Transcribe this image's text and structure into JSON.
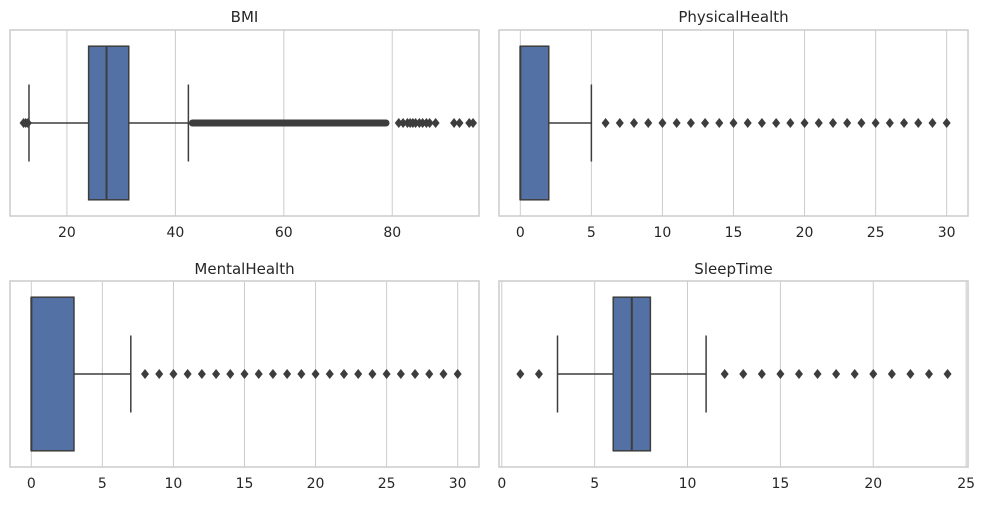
{
  "colors": {
    "box": "#5471a6",
    "line": "#3d3d3d",
    "grid": "#cccccc",
    "frame": "#cccccc",
    "text": "#262626"
  },
  "chart_data": [
    {
      "type": "box",
      "title": "BMI",
      "xlim": [
        9.5,
        96
      ],
      "ticks": [
        20,
        40,
        60,
        80
      ],
      "grid": true,
      "box": {
        "whisker_low": 13,
        "q1": 24,
        "median": 27.3,
        "q3": 31.4,
        "whisker_high": 42.4
      },
      "outliers_low": [
        12.0,
        12.4,
        12.8
      ],
      "outlier_band": [
        42.5,
        79.5
      ],
      "outliers_high": [
        81.2,
        82.0,
        82.8,
        83.3,
        83.8,
        84.3,
        85.0,
        85.6,
        86.3,
        86.9,
        88.0,
        91.4,
        92.4,
        94.2,
        94.9
      ]
    },
    {
      "type": "box",
      "title": "PhysicalHealth",
      "xlim": [
        -1.5,
        31.5
      ],
      "ticks": [
        0,
        5,
        10,
        15,
        20,
        25,
        30
      ],
      "grid": true,
      "box": {
        "whisker_low": 0,
        "q1": 0,
        "median": 0,
        "q3": 2,
        "whisker_high": 5
      },
      "outliers_low": [],
      "outlier_band": null,
      "outliers_high": [
        6,
        7,
        8,
        9,
        10,
        11,
        12,
        13,
        14,
        15,
        16,
        17,
        18,
        19,
        20,
        21,
        22,
        23,
        24,
        25,
        26,
        27,
        28,
        29,
        30
      ]
    },
    {
      "type": "box",
      "title": "MentalHealth",
      "xlim": [
        -1.5,
        31.5
      ],
      "ticks": [
        0,
        5,
        10,
        15,
        20,
        25,
        30
      ],
      "grid": true,
      "box": {
        "whisker_low": 0,
        "q1": 0,
        "median": 0,
        "q3": 3,
        "whisker_high": 7
      },
      "outliers_low": [],
      "outlier_band": null,
      "outliers_high": [
        8,
        9,
        10,
        11,
        12,
        13,
        14,
        15,
        16,
        17,
        18,
        19,
        20,
        21,
        22,
        23,
        24,
        25,
        26,
        27,
        28,
        29,
        30
      ]
    },
    {
      "type": "box",
      "title": "SleepTime",
      "xlim": [
        -0.15,
        25.1
      ],
      "ticks": [
        0,
        5,
        10,
        15,
        20,
        25
      ],
      "grid": true,
      "box": {
        "whisker_low": 3,
        "q1": 6,
        "median": 7,
        "q3": 8,
        "whisker_high": 11
      },
      "outliers_low": [
        1,
        2
      ],
      "outlier_band": null,
      "outliers_high": [
        12,
        13,
        14,
        15,
        16,
        17,
        18,
        19,
        20,
        21,
        22,
        23,
        24
      ]
    }
  ]
}
